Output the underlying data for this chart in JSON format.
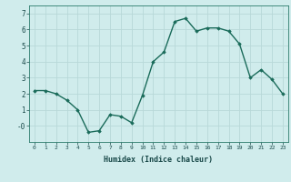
{
  "x": [
    0,
    1,
    2,
    3,
    4,
    5,
    6,
    7,
    8,
    9,
    10,
    11,
    12,
    13,
    14,
    15,
    16,
    17,
    18,
    19,
    20,
    21,
    22,
    23
  ],
  "y": [
    2.2,
    2.2,
    2.0,
    1.6,
    1.0,
    -0.4,
    -0.3,
    0.7,
    0.6,
    0.2,
    1.9,
    4.0,
    4.6,
    6.5,
    6.7,
    5.9,
    6.1,
    6.1,
    5.9,
    5.1,
    3.0,
    3.5,
    2.9,
    2.0
  ],
  "line_color": "#1a6b5a",
  "marker": "D",
  "marker_size": 1.8,
  "linewidth": 1.0,
  "xlabel": "Humidex (Indice chaleur)",
  "bg_color": "#d0ecec",
  "grid_color": "#b8d8d8",
  "xlim": [
    -0.5,
    23.5
  ],
  "ylim": [
    -1.0,
    7.5
  ],
  "yticks": [
    0,
    1,
    2,
    3,
    4,
    5,
    6,
    7
  ],
  "ytick_labels": [
    "-0",
    "1",
    "2",
    "3",
    "4",
    "5",
    "6",
    "7"
  ],
  "xticks": [
    0,
    1,
    2,
    3,
    4,
    5,
    6,
    7,
    8,
    9,
    10,
    11,
    12,
    13,
    14,
    15,
    16,
    17,
    18,
    19,
    20,
    21,
    22,
    23
  ]
}
